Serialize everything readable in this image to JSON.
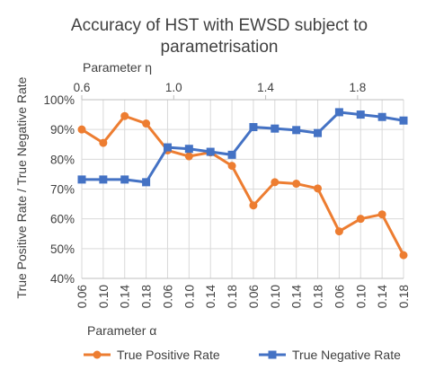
{
  "chart_data": {
    "type": "line",
    "title_line1": "Accuracy of HST with EWSD subject to",
    "title_line2": "parametrisation",
    "ylabel": "True Positive Rate / True Negative Rate",
    "xlabel": "Parameter α",
    "top_axis_label": "Parameter η",
    "top_ticks": [
      "0.6",
      "1.0",
      "1.4",
      "1.8"
    ],
    "categories": [
      "0.06",
      "0.10",
      "0.14",
      "0.18",
      "0.06",
      "0.10",
      "0.14",
      "0.18",
      "0.06",
      "0.10",
      "0.14",
      "0.18",
      "0.06",
      "0.10",
      "0.14",
      "0.18"
    ],
    "ylim": [
      40,
      100
    ],
    "yticks": [
      "40%",
      "50%",
      "60%",
      "70%",
      "80%",
      "90%",
      "100%"
    ],
    "grid": true,
    "legend_position": "bottom",
    "series": [
      {
        "name": "True Positive Rate",
        "color": "#ED7D31",
        "marker": "circle",
        "values": [
          90,
          85.5,
          94.5,
          92,
          83,
          81,
          82.3,
          77.8,
          64.5,
          72.3,
          71.8,
          70.2,
          55.8,
          60,
          61.5,
          47.8
        ]
      },
      {
        "name": "True Negative Rate",
        "color": "#4472C4",
        "marker": "square",
        "values": [
          73.2,
          73.2,
          73.2,
          72.3,
          84,
          83.5,
          82.5,
          81.5,
          90.8,
          90.3,
          89.8,
          88.8,
          95.8,
          95,
          94.2,
          93
        ]
      }
    ]
  }
}
